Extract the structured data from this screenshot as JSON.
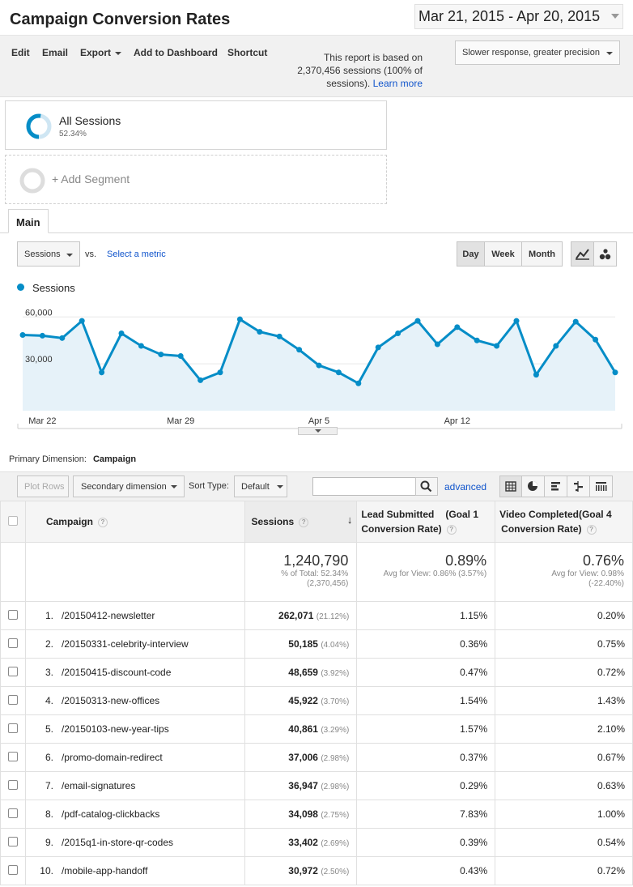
{
  "header": {
    "title": "Campaign Conversion Rates",
    "date_range": "Mar 21, 2015 - Apr 20, 2015"
  },
  "toolbar": {
    "edit": "Edit",
    "email": "Email",
    "export": "Export",
    "add_to_dashboard": "Add to Dashboard",
    "shortcut": "Shortcut",
    "report_note_1": "This report is based on",
    "report_note_2": "2,370,456 sessions (100% of",
    "report_note_3": "sessions).",
    "learn_more": "Learn more",
    "precision": "Slower response, greater precision"
  },
  "segments": {
    "all_sessions": "All Sessions",
    "all_sessions_pct": "52.34%",
    "add_segment": "+ Add Segment"
  },
  "tabs": {
    "main": "Main"
  },
  "chart_controls": {
    "metric": "Sessions",
    "vs": "vs.",
    "select_metric": "Select a metric",
    "day": "Day",
    "week": "Week",
    "month": "Month"
  },
  "chart_data": {
    "type": "area",
    "series": [
      {
        "name": "Sessions",
        "values": [
          48500,
          48000,
          46500,
          57500,
          24500,
          49500,
          41500,
          36000,
          35000,
          19500,
          24500,
          58500,
          50500,
          47500,
          39000,
          29000,
          24500,
          17500,
          40500,
          49500,
          57500,
          42500,
          53500,
          45000,
          41500,
          57500,
          23000,
          41500,
          57000,
          45500,
          24500
        ]
      }
    ],
    "x_tick_labels": [
      "Mar 22",
      "Mar 29",
      "Apr 5",
      "Apr 12"
    ],
    "y_tick_labels": [
      "60,000",
      "30,000"
    ],
    "ylim": [
      0,
      70000
    ],
    "legend": "top-left",
    "grid": true,
    "color": "#058dc7"
  },
  "primary_dimension": {
    "label": "Primary Dimension:",
    "value": "Campaign"
  },
  "table_controls": {
    "plot_rows": "Plot Rows",
    "secondary_dimension": "Secondary dimension",
    "sort_type_label": "Sort Type:",
    "sort_type": "Default",
    "advanced": "advanced"
  },
  "table": {
    "headers": {
      "campaign": "Campaign",
      "sessions": "Sessions",
      "lead": "Lead Submitted",
      "lead_goal": "(Goal 1",
      "lead_rate": "Conversion Rate)",
      "video": "Video Completed",
      "video_goal": "(Goal 4",
      "video_rate": "Conversion Rate)"
    },
    "totals": {
      "sessions": "1,240,790",
      "sessions_sub1": "% of Total: 52.34%",
      "sessions_sub2": "(2,370,456)",
      "lead": "0.89%",
      "lead_sub1": "Avg for View: 0.86% (3.57%)",
      "video": "0.76%",
      "video_sub1": "Avg for View: 0.98%",
      "video_sub2": "(-22.40%)"
    },
    "rows": [
      {
        "idx": "1.",
        "name": "/20150412-newsletter",
        "sessions": "262,071",
        "pct": "(21.12%)",
        "lead": "1.15%",
        "video": "0.20%"
      },
      {
        "idx": "2.",
        "name": "/20150331-celebrity-interview",
        "sessions": "50,185",
        "pct": "(4.04%)",
        "lead": "0.36%",
        "video": "0.75%"
      },
      {
        "idx": "3.",
        "name": "/20150415-discount-code",
        "sessions": "48,659",
        "pct": "(3.92%)",
        "lead": "0.47%",
        "video": "0.72%"
      },
      {
        "idx": "4.",
        "name": "/20150313-new-offices",
        "sessions": "45,922",
        "pct": "(3.70%)",
        "lead": "1.54%",
        "video": "1.43%"
      },
      {
        "idx": "5.",
        "name": "/20150103-new-year-tips",
        "sessions": "40,861",
        "pct": "(3.29%)",
        "lead": "1.57%",
        "video": "2.10%"
      },
      {
        "idx": "6.",
        "name": "/promo-domain-redirect",
        "sessions": "37,006",
        "pct": "(2.98%)",
        "lead": "0.37%",
        "video": "0.67%"
      },
      {
        "idx": "7.",
        "name": "/email-signatures",
        "sessions": "36,947",
        "pct": "(2.98%)",
        "lead": "0.29%",
        "video": "0.63%"
      },
      {
        "idx": "8.",
        "name": "/pdf-catalog-clickbacks",
        "sessions": "34,098",
        "pct": "(2.75%)",
        "lead": "7.83%",
        "video": "1.00%"
      },
      {
        "idx": "9.",
        "name": "/2015q1-in-store-qr-codes",
        "sessions": "33,402",
        "pct": "(2.69%)",
        "lead": "0.39%",
        "video": "0.54%"
      },
      {
        "idx": "10.",
        "name": "/mobile-app-handoff",
        "sessions": "30,972",
        "pct": "(2.50%)",
        "lead": "0.43%",
        "video": "0.72%"
      }
    ]
  }
}
